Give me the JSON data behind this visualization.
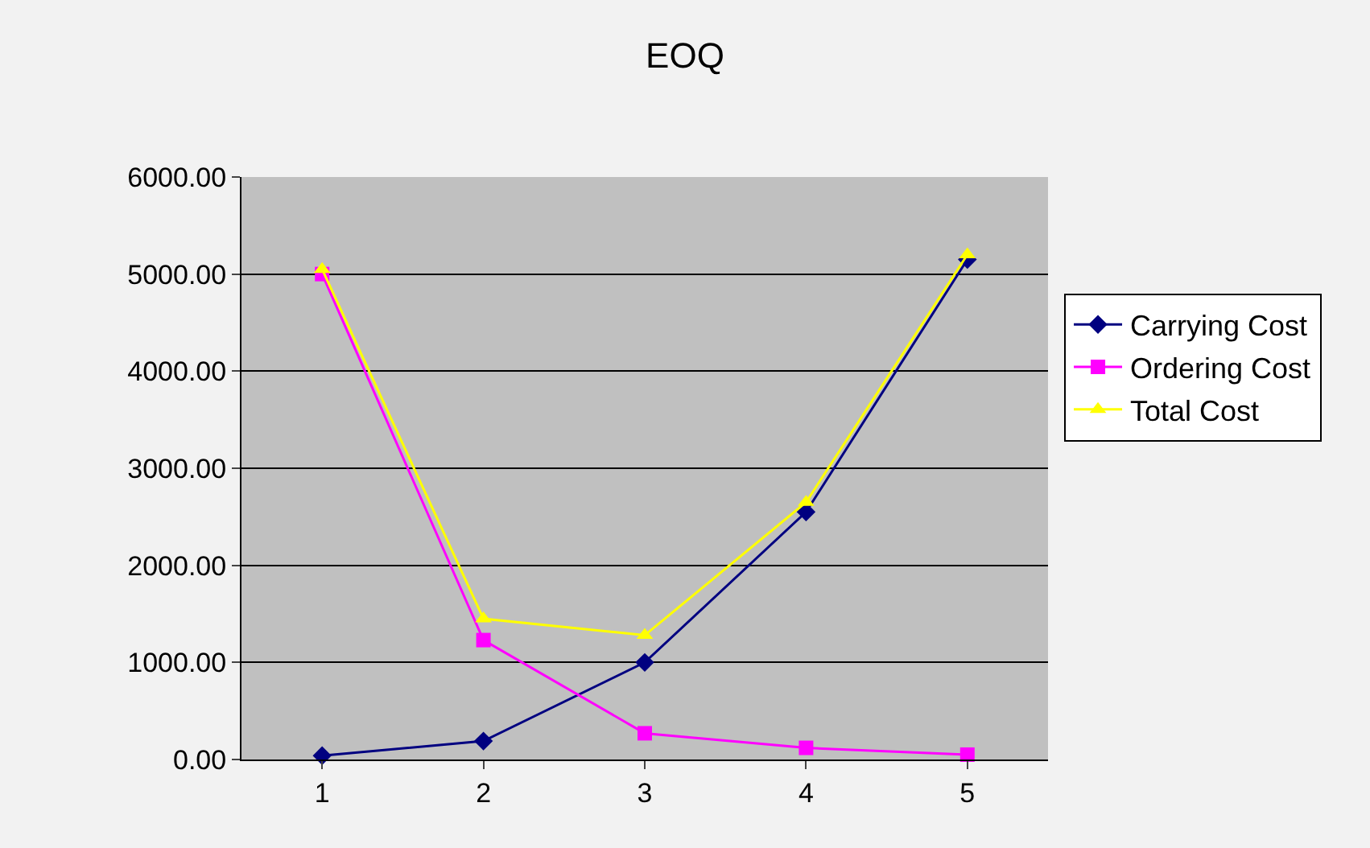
{
  "chart_data": {
    "type": "line",
    "title": "EOQ",
    "categories": [
      "1",
      "2",
      "3",
      "4",
      "5"
    ],
    "series": [
      {
        "name": "Carrying Cost",
        "color": "#000080",
        "marker": "diamond",
        "values": [
          40,
          190,
          1000,
          2550,
          5150
        ]
      },
      {
        "name": "Ordering Cost",
        "color": "#ff00ff",
        "marker": "square",
        "values": [
          5000,
          1230,
          270,
          120,
          50
        ]
      },
      {
        "name": "Total Cost",
        "color": "#ffff00",
        "marker": "triangle",
        "values": [
          5050,
          1450,
          1280,
          2650,
          5200
        ]
      }
    ],
    "ylim": [
      0,
      6000
    ],
    "yticks": [
      {
        "value": 0,
        "label": "0.00"
      },
      {
        "value": 1000,
        "label": "1000.00"
      },
      {
        "value": 2000,
        "label": "2000.00"
      },
      {
        "value": 3000,
        "label": "3000.00"
      },
      {
        "value": 4000,
        "label": "4000.00"
      },
      {
        "value": 5000,
        "label": "5000.00"
      },
      {
        "value": 6000,
        "label": "6000.00"
      }
    ],
    "grid": "y",
    "legend": "right",
    "line_style": "solid"
  }
}
